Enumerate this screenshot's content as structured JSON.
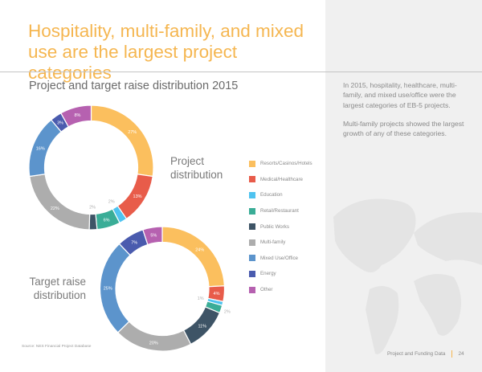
{
  "title": "Hospitality, multi-family, and mixed use are the largest project categories",
  "subtitle": "Project and target raise distribution 2015",
  "side_paragraphs": [
    "In 2015, hospitality, healthcare, multi-family, and mixed use/office were the largest categories of EB-5 projects.",
    "Multi-family projects showed the largest growth of any of these categories."
  ],
  "source": "Source: NES Financial Project Database",
  "footer": {
    "section": "Project and Funding Data",
    "page": "24"
  },
  "colors": {
    "accent": "#f5b650",
    "panel": "#f0f0f0"
  },
  "chart_data": [
    {
      "type": "pie",
      "title": "Project distribution",
      "label_line1": "Project",
      "label_line2": "distribution",
      "donut": true,
      "categories": [
        "Resorts/Casinos/Hotels",
        "Medical/Healthcare",
        "Education",
        "Retail/Restaurant",
        "Public Works",
        "Multi-family",
        "Mixed Use/Office",
        "Energy",
        "Other"
      ],
      "values": [
        27,
        13,
        2,
        6,
        2,
        22,
        16,
        3,
        8
      ],
      "data_labels": [
        "27%",
        "13%",
        "2%",
        "6%",
        "2%",
        "22%",
        "16%",
        "3%",
        "8%"
      ]
    },
    {
      "type": "pie",
      "title": "Target raise distribution",
      "label_line1": "Target raise",
      "label_line2": "distribution",
      "donut": true,
      "categories": [
        "Resorts/Casinos/Hotels",
        "Medical/Healthcare",
        "Education",
        "Retail/Restaurant",
        "Public Works",
        "Multi-family",
        "Mixed Use/Office",
        "Energy",
        "Other"
      ],
      "values": [
        24,
        4,
        1,
        2,
        11,
        20,
        25,
        7,
        5
      ],
      "data_labels": [
        "24%",
        "4%",
        "1%",
        "2%",
        "11%",
        "20%",
        "25%",
        "7%",
        "5%"
      ]
    }
  ],
  "legend": [
    {
      "label": "Resorts/Casinos/Hotels",
      "color": "#fbbf5e"
    },
    {
      "label": "Medical/Healthcare",
      "color": "#e85c4a"
    },
    {
      "label": "Education",
      "color": "#4fc3f0"
    },
    {
      "label": "Retail/Restaurant",
      "color": "#3aad97"
    },
    {
      "label": "Public Works",
      "color": "#3e5466"
    },
    {
      "label": "Multi-family",
      "color": "#adadad"
    },
    {
      "label": "Mixed Use/Office",
      "color": "#5c94cc"
    },
    {
      "label": "Energy",
      "color": "#4a5bae"
    },
    {
      "label": "Other",
      "color": "#b661b0"
    }
  ]
}
